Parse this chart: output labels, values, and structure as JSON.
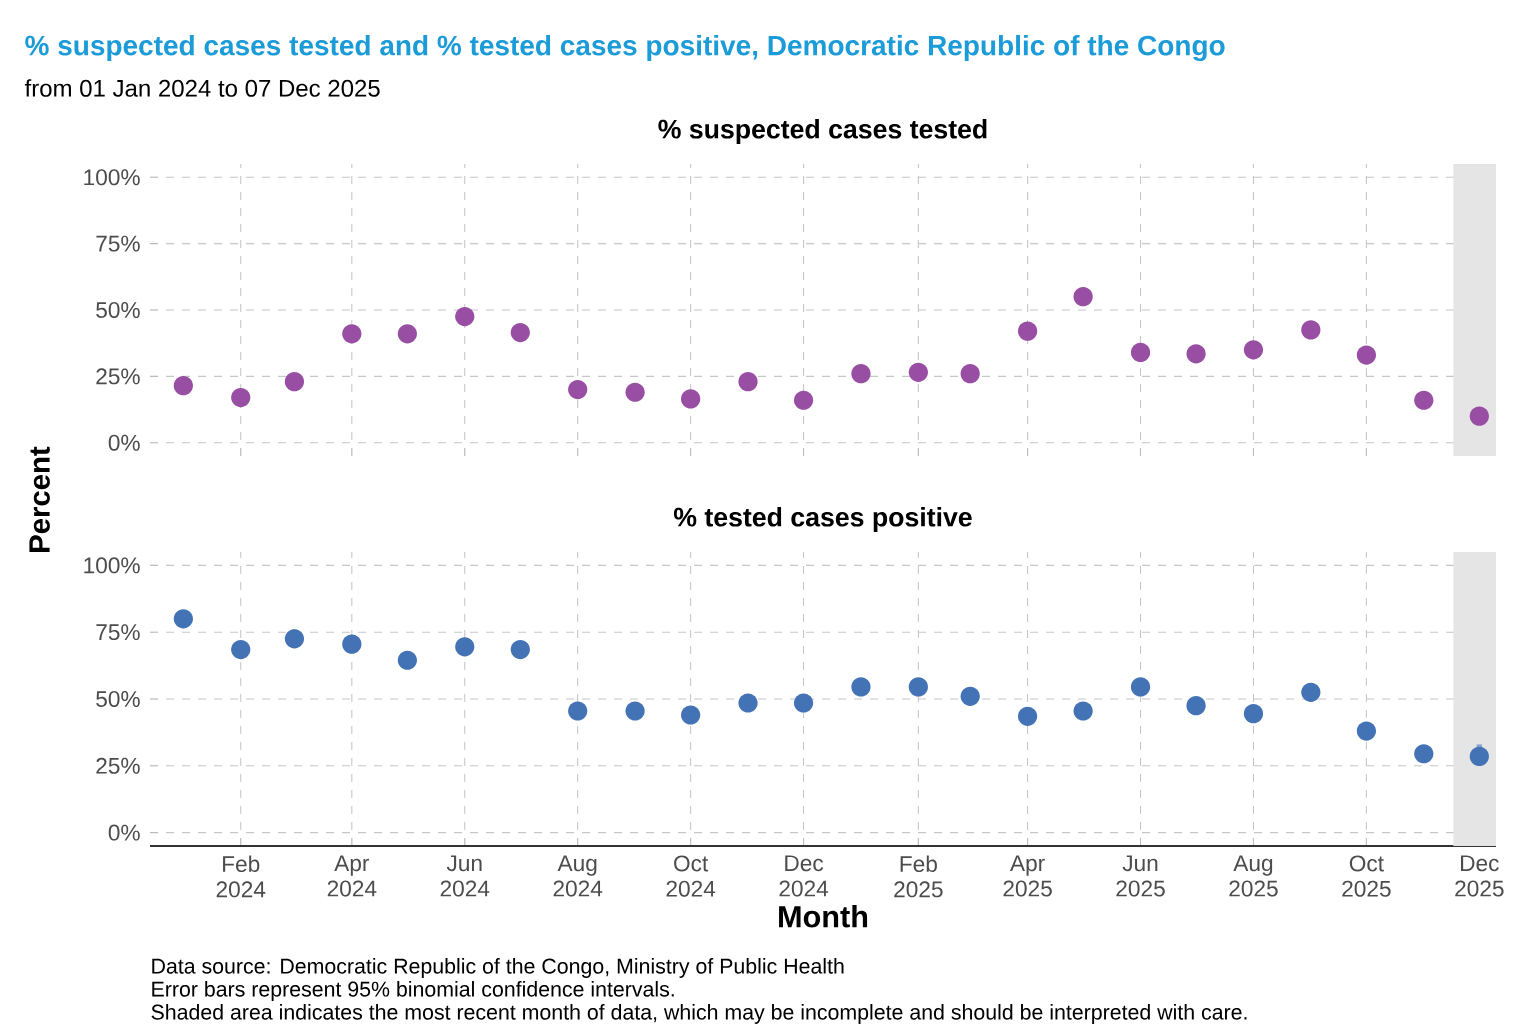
{
  "chart_data": [
    {
      "type": "other",
      "title": "% suspected cases tested and % tested cases positive, Democratic Republic of the Congo",
      "subtitle": "from 01 Jan 2024 to 07 Dec 2025",
      "annotations": [
        "Data source: Democratic Republic of the Congo, Ministry of Public Health",
        "Error bars represent 95% binomial confidence intervals.",
        "Shaded area indicates the most recent month of data, which may be incomplete and should be interpreted with care."
      ]
    },
    {
      "type": "scatter",
      "title": "% suspected cases tested",
      "ylabel": "Percent",
      "x": [
        "2024-01",
        "2024-02",
        "2024-03",
        "2024-04",
        "2024-05",
        "2024-06",
        "2024-07",
        "2024-08",
        "2024-09",
        "2024-10",
        "2024-11",
        "2024-12",
        "2025-01",
        "2025-02",
        "2025-03",
        "2025-04",
        "2025-05",
        "2025-06",
        "2025-07",
        "2025-08",
        "2025-09",
        "2025-10",
        "2025-11",
        "2025-12"
      ],
      "series": [
        {
          "color": "#984ea3",
          "values": [
            21.5,
            17,
            23,
            41,
            41,
            47.5,
            41.5,
            20,
            19,
            16.5,
            23,
            16,
            26,
            26.5,
            26,
            42,
            55,
            34,
            33.5,
            35,
            42.5,
            33,
            16,
            10
          ]
        }
      ],
      "xlim": [
        "2023-12-14",
        "2025-12-10"
      ],
      "ylim": [
        -5,
        105
      ],
      "xticks": [
        {
          "value": "2024-02",
          "label": null
        },
        {
          "value": "2024-04",
          "label": null
        },
        {
          "value": "2024-06",
          "label": null
        },
        {
          "value": "2024-08",
          "label": null
        },
        {
          "value": "2024-10",
          "label": null
        },
        {
          "value": "2024-12",
          "label": null
        },
        {
          "value": "2025-02",
          "label": null
        },
        {
          "value": "2025-04",
          "label": null
        },
        {
          "value": "2025-06",
          "label": null
        },
        {
          "value": "2025-08",
          "label": null
        },
        {
          "value": "2025-10",
          "label": null
        },
        {
          "value": "2025-12",
          "label": null
        }
      ],
      "yticks": [
        {
          "value": 0,
          "label": "0%"
        },
        {
          "value": 25,
          "label": "25%"
        },
        {
          "value": 50,
          "label": "50%"
        },
        {
          "value": 75,
          "label": "75%"
        },
        {
          "value": 100,
          "label": "100%"
        }
      ],
      "bands": [
        {
          "axis": "x",
          "from": "2025-11-17",
          "to": "2025-12-10",
          "color": "#e5e5e5"
        }
      ],
      "grid": true,
      "marker": "circle",
      "tick_labels": "y"
    },
    {
      "type": "scatter",
      "title": "% tested cases positive",
      "xlabel": "Month",
      "x": [
        "2024-01",
        "2024-02",
        "2024-03",
        "2024-04",
        "2024-05",
        "2024-06",
        "2024-07",
        "2024-08",
        "2024-09",
        "2024-10",
        "2024-11",
        "2024-12",
        "2025-01",
        "2025-02",
        "2025-03",
        "2025-04",
        "2025-05",
        "2025-06",
        "2025-07",
        "2025-08",
        "2025-09",
        "2025-10",
        "2025-11",
        "2025-12"
      ],
      "series": [
        {
          "color": "#4372b5",
          "values": [
            80,
            68.5,
            72.5,
            70.5,
            64.5,
            69.5,
            68.5,
            45.5,
            45.5,
            44,
            48.5,
            48.5,
            54.5,
            54.5,
            51,
            43.5,
            45.5,
            54.5,
            47.5,
            44.5,
            52.5,
            38,
            29.5,
            28.5
          ],
          "errors": [
            [
              77,
              83
            ],
            [
              66,
              71.5
            ],
            [
              69.5,
              76
            ],
            null,
            null,
            null,
            null,
            null,
            null,
            null,
            null,
            null,
            null,
            null,
            null,
            null,
            null,
            null,
            null,
            null,
            null,
            null,
            null,
            [
              25,
              33
            ]
          ]
        }
      ],
      "xlim": [
        "2023-12-14",
        "2025-12-10"
      ],
      "ylim": [
        -5,
        105
      ],
      "xticks": [
        {
          "value": "2024-02",
          "label": "Feb 2024"
        },
        {
          "value": "2024-04",
          "label": "Apr 2024"
        },
        {
          "value": "2024-06",
          "label": "Jun 2024"
        },
        {
          "value": "2024-08",
          "label": "Aug 2024"
        },
        {
          "value": "2024-10",
          "label": "Oct 2024"
        },
        {
          "value": "2024-12",
          "label": "Dec 2024"
        },
        {
          "value": "2025-02",
          "label": "Feb 2025"
        },
        {
          "value": "2025-04",
          "label": "Apr 2025"
        },
        {
          "value": "2025-06",
          "label": "Jun 2025"
        },
        {
          "value": "2025-08",
          "label": "Aug 2025"
        },
        {
          "value": "2025-10",
          "label": "Oct 2025"
        },
        {
          "value": "2025-12",
          "label": "Dec 2025"
        }
      ],
      "yticks": [
        {
          "value": 0,
          "label": "0%"
        },
        {
          "value": 25,
          "label": "25%"
        },
        {
          "value": 50,
          "label": "50%"
        },
        {
          "value": 75,
          "label": "75%"
        },
        {
          "value": 100,
          "label": "100%"
        }
      ],
      "bands": [
        {
          "axis": "x",
          "from": "2025-11-17",
          "to": "2025-12-10",
          "color": "#e5e5e5"
        }
      ],
      "grid": true,
      "marker": "circle"
    }
  ]
}
